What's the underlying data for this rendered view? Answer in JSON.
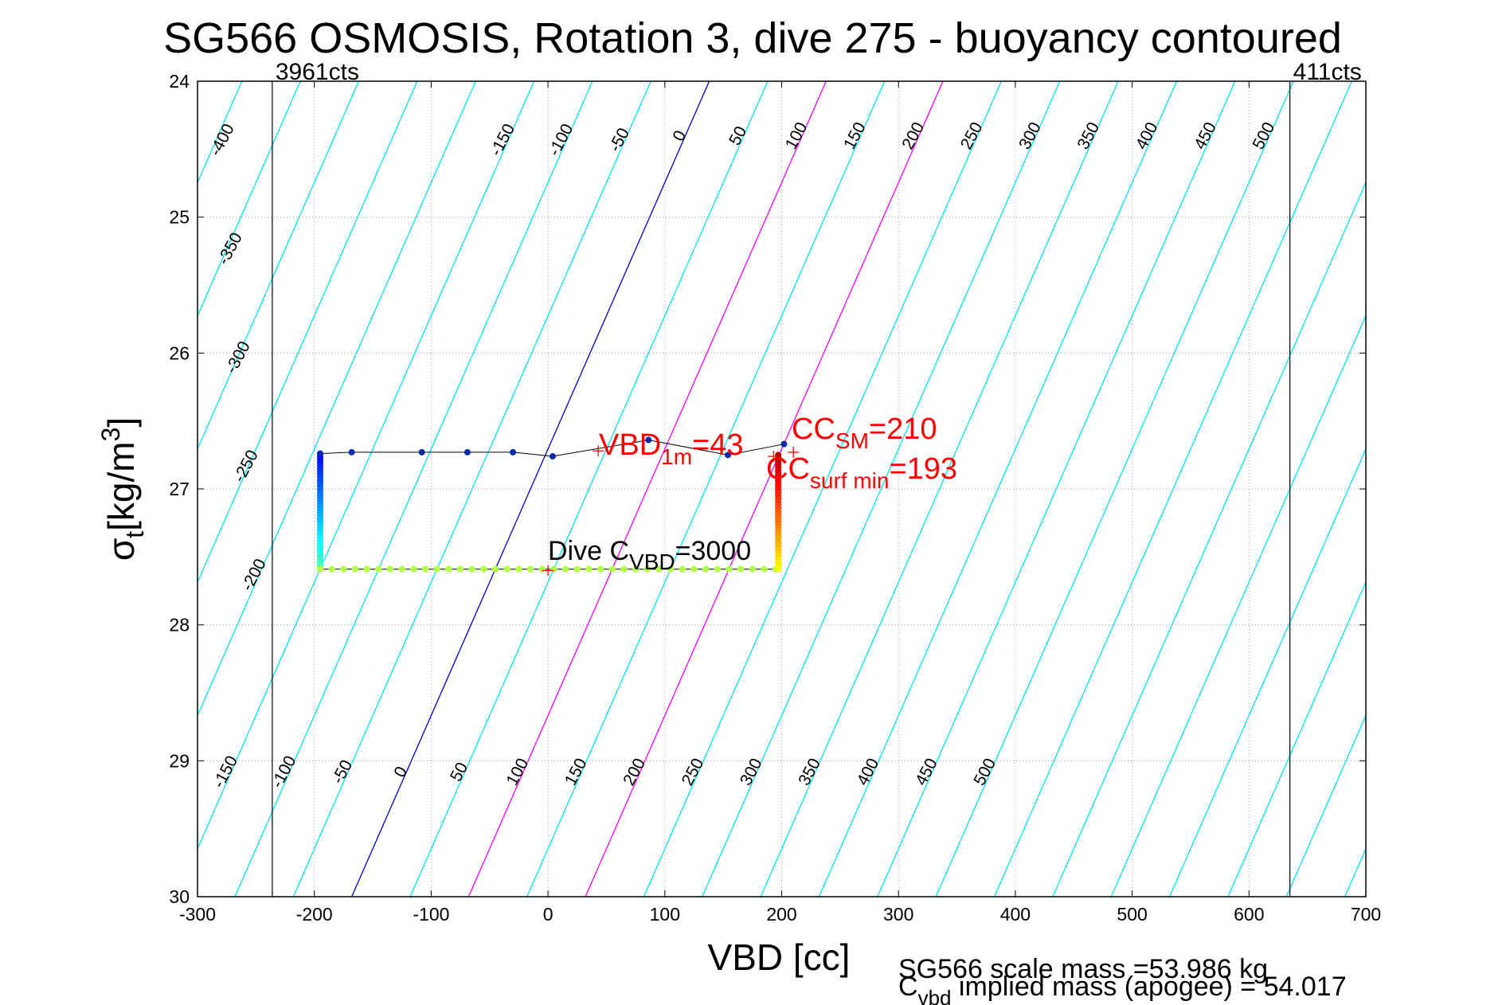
{
  "chart_data": {
    "type": "line",
    "title": "SG566 OSMOSIS, Rotation 3, dive 275 - buoyancy contoured",
    "xlabel": "VBD [cc]",
    "ylabel": "σ",
    "ylabel_sub": "t",
    "ylabel_unit": "[kg/m",
    "ylabel_unit_sup": "3",
    "ylabel_unit_close": "]",
    "xlim": [
      -300,
      700
    ],
    "ylim_reversed": [
      24,
      30
    ],
    "x_ticks": [
      "-300",
      "-200",
      "-100",
      "0",
      "100",
      "200",
      "300",
      "400",
      "500",
      "600",
      "700"
    ],
    "y_ticks": [
      "24",
      "25",
      "26",
      "27",
      "28",
      "29",
      "30"
    ],
    "grid": true,
    "pump_limits": [
      {
        "x": -236,
        "label": "3961cts"
      },
      {
        "x": 635,
        "label": "411cts"
      }
    ],
    "contour_sigma_spacing": 1.65,
    "contour_x_spacing": 50,
    "contour_labels_top": [
      "-400",
      "-350",
      "-300",
      "-250",
      "-200",
      "-150",
      "-100",
      "-50",
      "0",
      "50",
      "100",
      "150",
      "200",
      "250",
      "300",
      "350",
      "400",
      "450",
      "500"
    ],
    "contour_labels_bottom": [
      "-150",
      "-100",
      "-50",
      "0",
      "50",
      "100",
      "150",
      "200",
      "250",
      "300",
      "350",
      "400",
      "450",
      "500"
    ],
    "zero_line": {
      "x_at_24": 138,
      "x_at_30": -168
    },
    "magenta_lines": [
      {
        "label": "100",
        "x_at_24": 238,
        "x_at_30": -68
      },
      {
        "label": "200",
        "x_at_24": 338,
        "x_at_30": 32
      }
    ],
    "dive_path": {
      "x": [
        -195,
        -195,
        -193,
        -195,
        -195,
        -195
      ],
      "y": [
        26.74,
        26.82,
        26.9,
        27.2,
        27.4,
        27.59
      ]
    },
    "dive_bottom_x": [
      -195,
      -185,
      -175,
      -165,
      -155,
      -145,
      -135,
      -125,
      -115,
      -105,
      -95,
      -85,
      -75,
      -65,
      -55,
      -45,
      -35,
      -25,
      -15,
      -5,
      5,
      15,
      25,
      35,
      45,
      55,
      65,
      75,
      85,
      95,
      105,
      115,
      125,
      135,
      145,
      155,
      165,
      175,
      185,
      195
    ],
    "dive_bottom_y": 27.59,
    "climb_path": {
      "x": [
        197,
        197,
        197,
        197,
        197
      ],
      "y": [
        27.59,
        27.4,
        27.2,
        27.0,
        26.75
      ]
    },
    "surface_path": {
      "x": [
        -195,
        -168,
        -108,
        -69,
        -30,
        4,
        86,
        154,
        202
      ],
      "y": [
        26.74,
        26.73,
        26.73,
        26.73,
        26.73,
        26.76,
        26.64,
        26.75,
        26.67
      ]
    },
    "annotations": {
      "vbd1m": {
        "main": "VBD",
        "sub": "1m",
        "tail": "=43",
        "x": 43,
        "y": 26.72
      },
      "ccsm": {
        "main": "CC",
        "sub": "SM",
        "tail": "=210",
        "x": 210,
        "y": 26.73
      },
      "ccsurf": {
        "main": "CC",
        "sub": "surf min",
        "tail": "=193",
        "x": 193,
        "y": 26.76
      },
      "divec": {
        "main": "Dive C",
        "sub": "VBD",
        "tail": "=3000",
        "x": 0,
        "y": 27.6
      }
    },
    "colors": {
      "contour": "#00e5ee",
      "zero": "#0000cc",
      "magenta": "#ff00ff",
      "path": "#000000",
      "annotation_red": "#ff0000"
    }
  },
  "footer": {
    "line1": "SG566 scale mass =53.986 kg",
    "line2_main": "C",
    "line2_sub": "vbd",
    "line2_tail": " implied mass (apogee) = 54.017"
  }
}
